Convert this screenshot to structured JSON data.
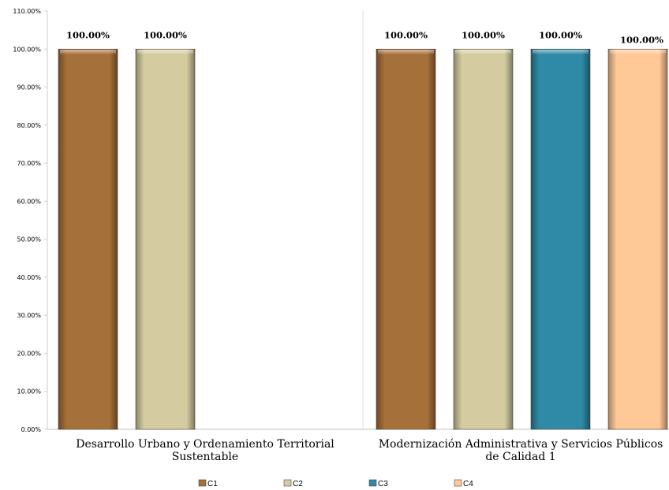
{
  "chart_data": {
    "type": "bar",
    "title": "",
    "xlabel": "",
    "ylabel": "",
    "ylim": [
      0,
      110
    ],
    "y_tick_step": 10,
    "y_tick_suffix": "%",
    "y_tick_decimals": 2,
    "grid": false,
    "category_separators": true,
    "legend_position": "bottom",
    "categories": [
      [
        "Desarrollo Urbano y Ordenamiento Territorial",
        "Sustentable"
      ],
      [
        "Modernización Administrativa y Servicios Públicos",
        "de Calidad 1"
      ]
    ],
    "series": [
      {
        "name": "C1",
        "color": "#A6703A",
        "values": [
          100.0,
          100.0
        ]
      },
      {
        "name": "C2",
        "color": "#D4CCA0",
        "values": [
          100.0,
          100.0
        ]
      },
      {
        "name": "C3",
        "color": "#2E8AA6",
        "values": [
          null,
          100.0
        ]
      },
      {
        "name": "C4",
        "color": "#FFC896",
        "values": [
          null,
          100.0
        ]
      }
    ],
    "data_labels": [
      [
        "100.00%",
        "100.00%"
      ],
      [
        "100.00%",
        "100.00%"
      ],
      [
        null,
        "100.00%"
      ],
      [
        null,
        "100.00%"
      ]
    ]
  }
}
